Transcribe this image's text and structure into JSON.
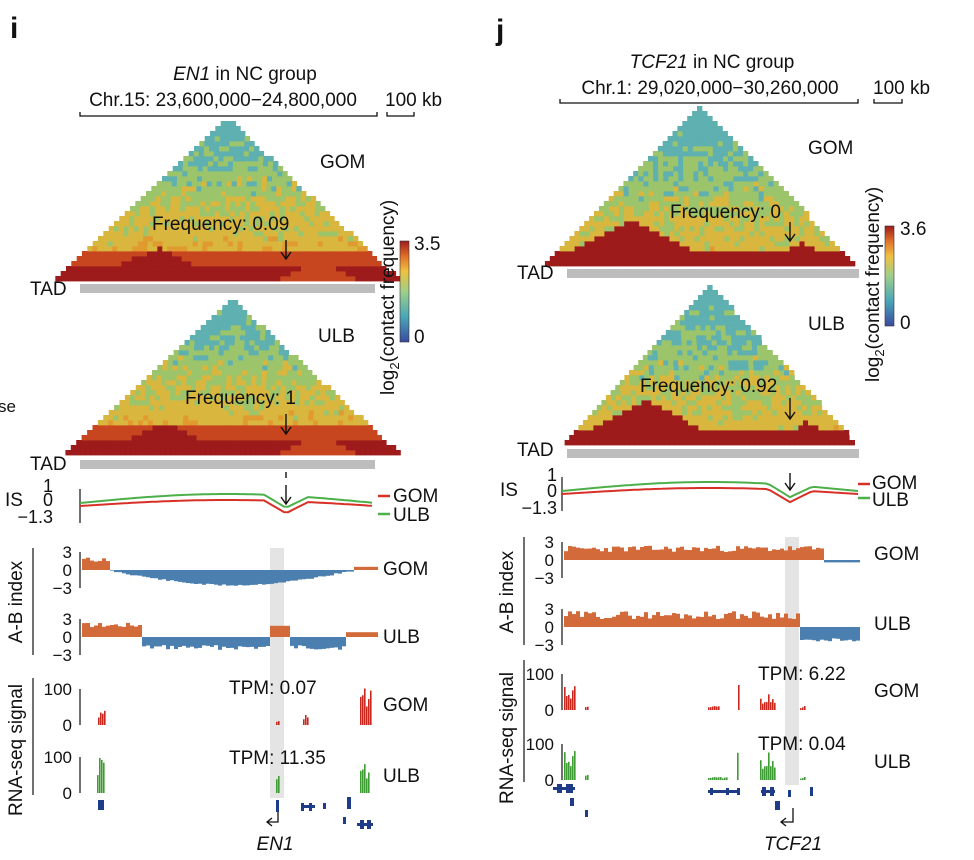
{
  "panels": {
    "i": {
      "letter": "i",
      "gene": "EN1",
      "title_suffix": " in NC group",
      "coords": "Chr.15: 23,600,000−24,800,000",
      "scalebar": "100 kb",
      "hic_top": {
        "sample": "GOM",
        "frequency": "Frequency: 0.09"
      },
      "hic_bottom": {
        "sample": "ULB",
        "frequency": "Frequency: 1"
      },
      "tad_label": "TAD",
      "colorbar": {
        "max": "3.5",
        "min": "0",
        "label_prefix": "log",
        "label_sub": "2",
        "label_suffix": "(contact frequency)"
      },
      "is_track": {
        "label": "IS",
        "ticks": [
          "1",
          "0",
          "−1.3"
        ],
        "legend": [
          {
            "name": "GOM",
            "color": "#d73027"
          },
          {
            "name": "ULB",
            "color": "#4daf4a"
          }
        ]
      },
      "ab_index": {
        "label": "A-B index",
        "ticks": [
          "3",
          "0",
          "−3"
        ],
        "tracks": [
          "GOM",
          "ULB"
        ]
      },
      "rna": {
        "label": "RNA-seq signal",
        "ticks": [
          "100",
          "0"
        ],
        "tracks": [
          {
            "sample": "GOM",
            "tpm": "TPM: 0.07"
          },
          {
            "sample": "ULB",
            "tpm": "TPM: 11.35"
          }
        ]
      },
      "gene_label": "EN1",
      "partial_left_text": "se"
    },
    "j": {
      "letter": "j",
      "gene": "TCF21",
      "title_suffix": " in NC group",
      "coords": "Chr.1: 29,020,000−30,260,000",
      "scalebar": "100 kb",
      "hic_top": {
        "sample": "GOM",
        "frequency": "Frequency: 0"
      },
      "hic_bottom": {
        "sample": "ULB",
        "frequency": "Frequency: 0.92"
      },
      "tad_label": "TAD",
      "colorbar": {
        "max": "3.6",
        "min": "0",
        "label_prefix": "log",
        "label_sub": "2",
        "label_suffix": "(contact frequency)"
      },
      "is_track": {
        "label": "IS",
        "ticks": [
          "1",
          "0",
          "−1.3"
        ],
        "legend": [
          {
            "name": "GOM",
            "color": "#d73027"
          },
          {
            "name": "ULB",
            "color": "#4daf4a"
          }
        ]
      },
      "ab_index": {
        "label": "A-B index",
        "ticks": [
          "3",
          "0",
          "−3"
        ],
        "tracks": [
          "GOM",
          "ULB"
        ]
      },
      "rna": {
        "label": "RNA-seq signal",
        "ticks": [
          "100",
          "0"
        ],
        "tracks": [
          {
            "sample": "GOM",
            "tpm": "TPM: 6.22"
          },
          {
            "sample": "ULB",
            "tpm": "TPM: 0.04"
          }
        ]
      },
      "gene_label": "TCF21"
    }
  },
  "colors": {
    "gom_line": "#d73027",
    "ulb_line": "#4daf4a",
    "a_comp": "#d26a3a",
    "b_comp": "#4a7fb0",
    "rna_gom": "#c8281e",
    "rna_ulb": "#3f9b33",
    "gene_model": "#1f3c88",
    "hic_high": "#9e1b1b",
    "hic_mid": "#e8b83a",
    "hic_low": "#4aa0b5"
  }
}
